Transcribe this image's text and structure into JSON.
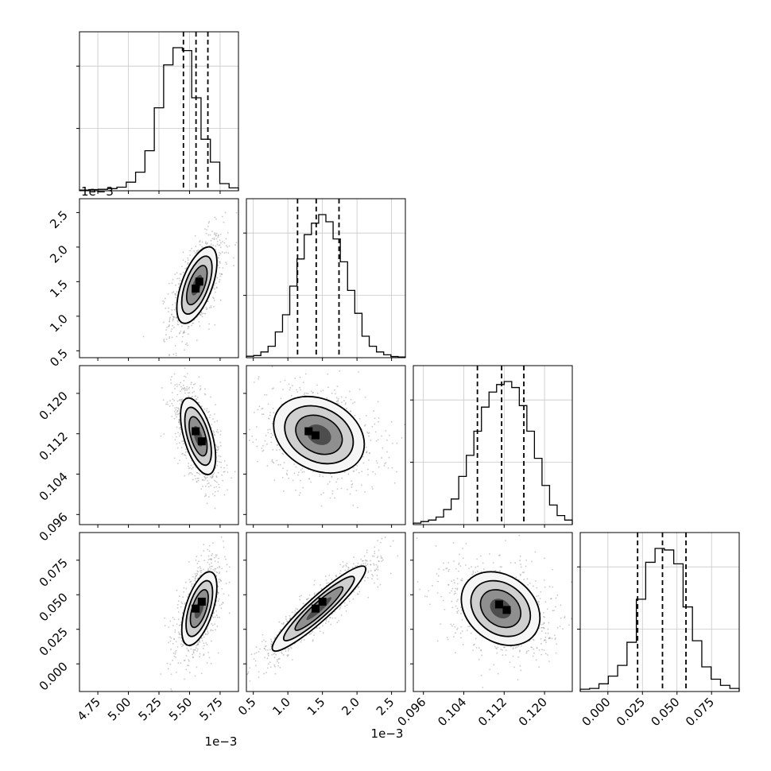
{
  "chart_data": {
    "type": "corner",
    "grid": true,
    "params": [
      {
        "range": [
          4.6,
          5.9
        ],
        "ticks": [
          "4.75",
          "5.00",
          "5.25",
          "5.50",
          "5.75"
        ],
        "tick_values": [
          4.75,
          5.0,
          5.25,
          5.5,
          5.75
        ],
        "offset_label": "1e−3",
        "quantiles": [
          5.45,
          5.553,
          5.65
        ],
        "hist": [
          0.005,
          0.008,
          0.01,
          0.015,
          0.025,
          0.06,
          0.13,
          0.28,
          0.58,
          0.88,
          1.0,
          0.98,
          0.65,
          0.36,
          0.2,
          0.05,
          0.02
        ]
      },
      {
        "range": [
          0.4,
          2.7
        ],
        "ticks": [
          "0.5",
          "1.0",
          "1.5",
          "2.0",
          "2.5"
        ],
        "tick_values": [
          0.5,
          1.0,
          1.5,
          2.0,
          2.5
        ],
        "offset_label": "1e−3",
        "quantiles": [
          1.14,
          1.41,
          1.74
        ],
        "hist": [
          0.01,
          0.015,
          0.04,
          0.08,
          0.18,
          0.3,
          0.5,
          0.69,
          0.86,
          0.94,
          1.0,
          0.95,
          0.83,
          0.67,
          0.47,
          0.31,
          0.15,
          0.08,
          0.04,
          0.02,
          0.008,
          0.005
        ]
      },
      {
        "range": [
          0.094,
          0.1255
        ],
        "ticks": [
          "0.096",
          "0.104",
          "0.112",
          "0.120"
        ],
        "tick_values": [
          0.096,
          0.104,
          0.112,
          0.12
        ],
        "offset_label": "",
        "quantiles": [
          0.1067,
          0.1115,
          0.1159
        ],
        "hist": [
          0.01,
          0.02,
          0.03,
          0.05,
          0.1,
          0.17,
          0.32,
          0.46,
          0.62,
          0.78,
          0.88,
          0.93,
          0.95,
          0.91,
          0.79,
          0.62,
          0.44,
          0.26,
          0.13,
          0.06,
          0.03
        ]
      },
      {
        "range": [
          -0.02,
          0.095
        ],
        "ticks": [
          "0.000",
          "0.025",
          "0.050",
          "0.075"
        ],
        "tick_values": [
          0.0,
          0.025,
          0.05,
          0.075
        ],
        "offset_label": "",
        "quantiles": [
          0.0215,
          0.0395,
          0.0565
        ],
        "hist": [
          0.015,
          0.02,
          0.05,
          0.1,
          0.17,
          0.32,
          0.6,
          0.84,
          0.93,
          0.92,
          0.83,
          0.55,
          0.33,
          0.16,
          0.08,
          0.04,
          0.02
        ]
      }
    ],
    "pairs": [
      {
        "row": 1,
        "col": 0,
        "mean": [
          5.56,
          1.45
        ],
        "sd": [
          0.08,
          0.27
        ],
        "rho": 0.6,
        "yticks": [
          "0.5",
          "1.0",
          "1.5",
          "2.0",
          "2.5"
        ],
        "peaks": [
          [
            5.55,
            1.4
          ],
          [
            5.58,
            1.5
          ]
        ]
      },
      {
        "row": 2,
        "col": 0,
        "mean": [
          5.57,
          0.1115
        ],
        "sd": [
          0.07,
          0.0037
        ],
        "rho": -0.55,
        "yticks": [
          "0.096",
          "0.104",
          "0.112",
          "0.120"
        ],
        "peaks": [
          [
            5.55,
            0.1125
          ],
          [
            5.6,
            0.1105
          ]
        ]
      },
      {
        "row": 2,
        "col": 1,
        "mean": [
          1.45,
          0.1118
        ],
        "sd": [
          0.32,
          0.0037
        ],
        "rho": -0.25,
        "yticks": [],
        "peaks": [
          [
            1.3,
            0.1125
          ],
          [
            1.4,
            0.1117
          ]
        ]
      },
      {
        "row": 3,
        "col": 0,
        "mean": [
          5.58,
          0.04
        ],
        "sd": [
          0.07,
          0.013
        ],
        "rho": 0.58,
        "yticks": [
          "0.000",
          "0.025",
          "0.050",
          "0.075"
        ],
        "peaks": [
          [
            5.55,
            0.04
          ],
          [
            5.6,
            0.045
          ]
        ]
      },
      {
        "row": 3,
        "col": 1,
        "mean": [
          1.45,
          0.04
        ],
        "sd": [
          0.33,
          0.015
        ],
        "rho": 0.93,
        "yticks": [],
        "peaks": [
          [
            1.4,
            0.04
          ],
          [
            1.5,
            0.045
          ]
        ]
      },
      {
        "row": 3,
        "col": 2,
        "mean": [
          0.1113,
          0.04
        ],
        "sd": [
          0.0038,
          0.013
        ],
        "rho": -0.25,
        "yticks": [],
        "peaks": [
          [
            0.111,
            0.043
          ],
          [
            0.1125,
            0.039
          ]
        ]
      }
    ]
  }
}
